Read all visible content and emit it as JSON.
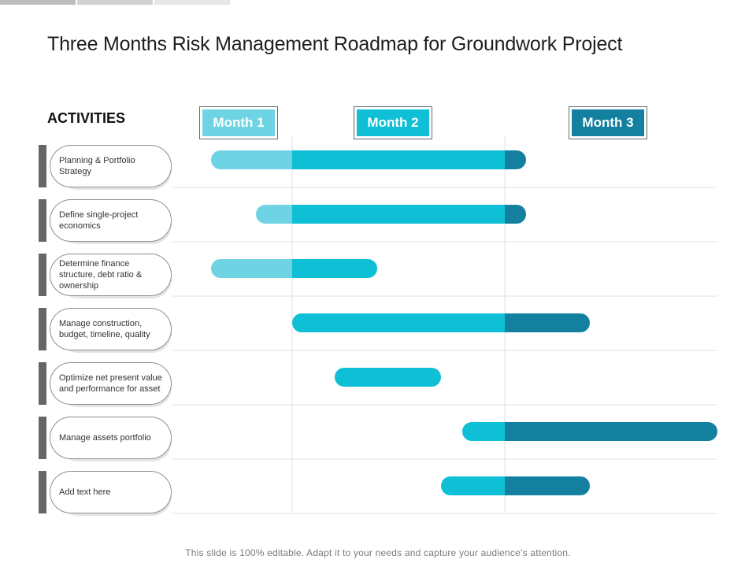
{
  "title": "Three Months Risk Management Roadmap for Groundwork Project",
  "activities_heading": "ACTIVITIES",
  "months": [
    {
      "label": "Month 1",
      "color": "#6ed4e3"
    },
    {
      "label": "Month 2",
      "color": "#0fbfd6"
    },
    {
      "label": "Month 3",
      "color": "#14809f"
    }
  ],
  "rows": [
    {
      "label": "Planning & Portfolio Strategy",
      "start": 0.4,
      "end": 2.1
    },
    {
      "label": "Define single-project economics",
      "start": 0.73,
      "end": 2.1
    },
    {
      "label": "Determine finance structure, debt ratio & ownership",
      "start": 0.4,
      "end": 1.4
    },
    {
      "label": "Manage construction, budget, timeline, quality",
      "start": 1.0,
      "end": 2.4
    },
    {
      "label": "Optimize net present value and performance for asset",
      "start": 1.2,
      "end": 1.7
    },
    {
      "label": "Manage assets portfolio",
      "start": 1.8,
      "end": 3.0
    },
    {
      "label": "Add text here",
      "start": 1.7,
      "end": 2.4
    }
  ],
  "footer": "This slide is 100% editable. Adapt it to your needs and capture your audience’s attention."
}
